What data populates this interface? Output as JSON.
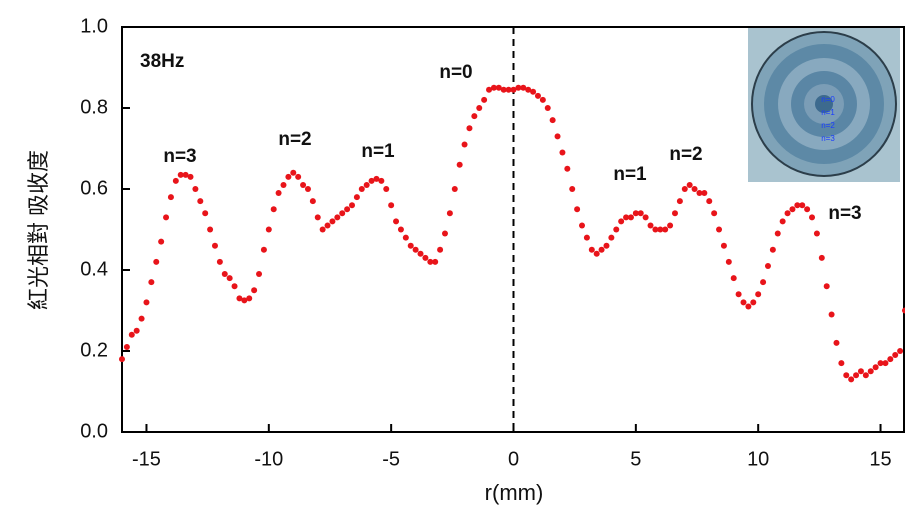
{
  "chart_data": {
    "type": "scatter",
    "y_label": "紅光相對 吸收度",
    "x_label": "r(mm)",
    "annotations": [
      "38Hz",
      "n=3",
      "n=2",
      "n=1",
      "n=0",
      "n=1",
      "n=2",
      "n=3"
    ],
    "inset_labels": [
      "n=0",
      "n=1",
      "n=2",
      "n=3"
    ],
    "color": "#e8141a",
    "xlim": [
      -16,
      16
    ],
    "ylim": [
      0,
      1
    ],
    "xticks": [
      -15,
      -10,
      -5,
      0,
      5,
      10,
      15
    ],
    "yticks": [
      {
        "value": 0,
        "label": "0.0"
      },
      0.2,
      0.4,
      0.6,
      0.8,
      {
        "value": 1,
        "label": "1.0"
      }
    ],
    "x": [
      -16,
      -15.8,
      -15.6,
      -15.4,
      -15.2,
      -15,
      -14.8,
      -14.6,
      -14.4,
      -14.2,
      -14,
      -13.8,
      -13.6,
      -13.4,
      -13.2,
      -13,
      -12.8,
      -12.6,
      -12.4,
      -12.2,
      -12,
      -11.8,
      -11.6,
      -11.4,
      -11.2,
      -11,
      -10.8,
      -10.6,
      -10.4,
      -10.2,
      -10,
      -9.8,
      -9.6,
      -9.4,
      -9.2,
      -9,
      -8.8,
      -8.6,
      -8.4,
      -8.2,
      -8,
      -7.8,
      -7.6,
      -7.4,
      -7.2,
      -7,
      -6.8,
      -6.6,
      -6.4,
      -6.2,
      -6,
      -5.8,
      -5.6,
      -5.4,
      -5.2,
      -5,
      -4.8,
      -4.6,
      -4.4,
      -4.2,
      -4,
      -3.8,
      -3.6,
      -3.4,
      -3.2,
      -3,
      -2.8,
      -2.6,
      -2.4,
      -2.2,
      -2,
      -1.8,
      -1.6,
      -1.4,
      -1.2,
      -1,
      -0.8,
      -0.6,
      -0.4,
      -0.2,
      0,
      0.2,
      0.4,
      0.6,
      0.8,
      1,
      1.2,
      1.4,
      1.6,
      1.8,
      2,
      2.2,
      2.4,
      2.6,
      2.8,
      3,
      3.2,
      3.4,
      3.6,
      3.8,
      4,
      4.2,
      4.4,
      4.6,
      4.8,
      5,
      5.2,
      5.4,
      5.6,
      5.8,
      6,
      6.2,
      6.4,
      6.6,
      6.8,
      7,
      7.2,
      7.4,
      7.6,
      7.8,
      8,
      8.2,
      8.4,
      8.6,
      8.8,
      9,
      9.2,
      9.4,
      9.6,
      9.8,
      10,
      10.2,
      10.4,
      10.6,
      10.8,
      11,
      11.2,
      11.4,
      11.6,
      11.8,
      12,
      12.2,
      12.4,
      12.6,
      12.8,
      13,
      13.2,
      13.4,
      13.6,
      13.8,
      14,
      14.2,
      14.4,
      14.6,
      14.8,
      15,
      15.2,
      15.4,
      15.6,
      15.8,
      16
    ],
    "values": [
      0.18,
      0.21,
      0.24,
      0.25,
      0.28,
      0.32,
      0.37,
      0.42,
      0.47,
      0.53,
      0.58,
      0.62,
      0.635,
      0.635,
      0.63,
      0.6,
      0.57,
      0.54,
      0.5,
      0.46,
      0.42,
      0.39,
      0.38,
      0.36,
      0.33,
      0.325,
      0.33,
      0.35,
      0.39,
      0.45,
      0.5,
      0.55,
      0.59,
      0.61,
      0.63,
      0.64,
      0.63,
      0.61,
      0.6,
      0.57,
      0.53,
      0.5,
      0.51,
      0.52,
      0.53,
      0.54,
      0.55,
      0.56,
      0.58,
      0.6,
      0.61,
      0.62,
      0.625,
      0.62,
      0.6,
      0.56,
      0.52,
      0.5,
      0.48,
      0.46,
      0.45,
      0.44,
      0.43,
      0.42,
      0.42,
      0.45,
      0.49,
      0.54,
      0.6,
      0.66,
      0.71,
      0.75,
      0.78,
      0.8,
      0.82,
      0.845,
      0.85,
      0.85,
      0.845,
      0.845,
      0.845,
      0.85,
      0.85,
      0.845,
      0.84,
      0.83,
      0.82,
      0.8,
      0.77,
      0.73,
      0.69,
      0.65,
      0.6,
      0.55,
      0.51,
      0.48,
      0.45,
      0.44,
      0.45,
      0.46,
      0.48,
      0.5,
      0.52,
      0.53,
      0.53,
      0.54,
      0.54,
      0.53,
      0.51,
      0.5,
      0.5,
      0.5,
      0.51,
      0.54,
      0.57,
      0.6,
      0.61,
      0.6,
      0.59,
      0.59,
      0.57,
      0.54,
      0.5,
      0.46,
      0.42,
      0.38,
      0.34,
      0.32,
      0.31,
      0.32,
      0.34,
      0.37,
      0.41,
      0.45,
      0.49,
      0.52,
      0.54,
      0.55,
      0.56,
      0.56,
      0.55,
      0.53,
      0.49,
      0.43,
      0.36,
      0.29,
      0.22,
      0.17,
      0.14,
      0.13,
      0.14,
      0.15,
      0.14,
      0.15,
      0.16,
      0.17,
      0.17,
      0.18,
      0.19,
      0.2,
      0.3
    ]
  }
}
